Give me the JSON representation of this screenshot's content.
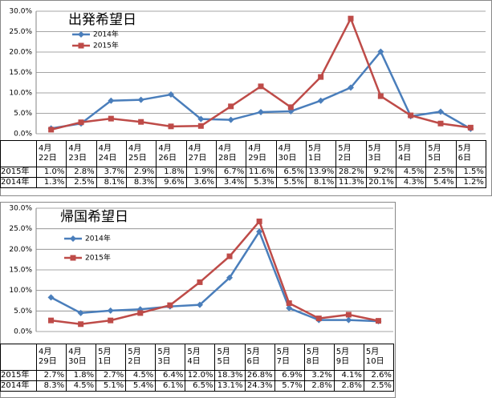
{
  "chart_data": [
    {
      "type": "line",
      "title": "出発希望日",
      "categories": [
        "4月\n22日",
        "4月\n23日",
        "4月\n24日",
        "4月\n25日",
        "4月\n26日",
        "4月\n27日",
        "4月\n28日",
        "4月\n29日",
        "4月\n30日",
        "5月\n1日",
        "5月\n2日",
        "5月\n3日",
        "5月\n4日",
        "5月\n5日",
        "5月\n6日"
      ],
      "series": [
        {
          "name": "2014年",
          "color": "#4a7ebb",
          "marker": "diamond",
          "values": [
            1.3,
            2.5,
            8.1,
            8.3,
            9.6,
            3.6,
            3.4,
            5.3,
            5.5,
            8.1,
            11.3,
            20.1,
            4.3,
            5.4,
            1.2
          ],
          "value_labels": [
            "1.3%",
            "2.5%",
            "8.1%",
            "8.3%",
            "9.6%",
            "3.6%",
            "3.4%",
            "5.3%",
            "5.5%",
            "8.1%",
            "11.3%",
            "20.1%",
            "4.3%",
            "5.4%",
            "1.2%"
          ]
        },
        {
          "name": "2015年",
          "color": "#be4b48",
          "marker": "square",
          "values": [
            1.0,
            2.8,
            3.7,
            2.9,
            1.8,
            1.9,
            6.7,
            11.6,
            6.5,
            13.9,
            28.2,
            9.2,
            4.5,
            2.5,
            1.5
          ],
          "value_labels": [
            "1.0%",
            "2.8%",
            "3.7%",
            "2.9%",
            "1.8%",
            "1.9%",
            "6.7%",
            "11.6%",
            "6.5%",
            "13.9%",
            "28.2%",
            "9.2%",
            "4.5%",
            "2.5%",
            "1.5%"
          ]
        }
      ],
      "ylim": [
        0,
        30
      ],
      "yticks": [
        {
          "value": 0,
          "label": "0.0%"
        },
        {
          "value": 5,
          "label": "5.0%"
        },
        {
          "value": 10,
          "label": "10.0%"
        },
        {
          "value": 15,
          "label": "15.0%"
        },
        {
          "value": 20,
          "label": "20.0%"
        },
        {
          "value": 25,
          "label": "25.0%"
        },
        {
          "value": 30,
          "label": "30.0%"
        }
      ],
      "grid": true
    },
    {
      "type": "line",
      "title": "帰国希望日",
      "categories": [
        "4月\n29日",
        "4月\n30日",
        "5月\n1日",
        "5月\n2日",
        "5月\n3日",
        "5月\n4日",
        "5月\n5日",
        "5月\n6日",
        "5月\n7日",
        "5月\n8日",
        "5月\n9日",
        "5月\n10日"
      ],
      "series": [
        {
          "name": "2014年",
          "color": "#4a7ebb",
          "marker": "diamond",
          "values": [
            8.3,
            4.5,
            5.1,
            5.4,
            6.1,
            6.5,
            13.1,
            24.3,
            5.7,
            2.8,
            2.8,
            2.5
          ],
          "value_labels": [
            "8.3%",
            "4.5%",
            "5.1%",
            "5.4%",
            "6.1%",
            "6.5%",
            "13.1%",
            "24.3%",
            "5.7%",
            "2.8%",
            "2.8%",
            "2.5%"
          ]
        },
        {
          "name": "2015年",
          "color": "#be4b48",
          "marker": "square",
          "values": [
            2.7,
            1.8,
            2.7,
            4.5,
            6.4,
            12.0,
            18.3,
            26.8,
            6.9,
            3.2,
            4.1,
            2.6
          ],
          "value_labels": [
            "2.7%",
            "1.8%",
            "2.7%",
            "4.5%",
            "6.4%",
            "12.0%",
            "18.3%",
            "26.8%",
            "6.9%",
            "3.2%",
            "4.1%",
            "2.6%"
          ]
        }
      ],
      "ylim": [
        0,
        30
      ],
      "yticks": [
        {
          "value": 0,
          "label": "0.0%"
        },
        {
          "value": 5,
          "label": "5.0%"
        },
        {
          "value": 10,
          "label": "10.0%"
        },
        {
          "value": 15,
          "label": "15.0%"
        },
        {
          "value": 20,
          "label": "20.0%"
        },
        {
          "value": 25,
          "label": "25.0%"
        },
        {
          "value": 30,
          "label": "30.0%"
        }
      ],
      "grid": true
    }
  ]
}
